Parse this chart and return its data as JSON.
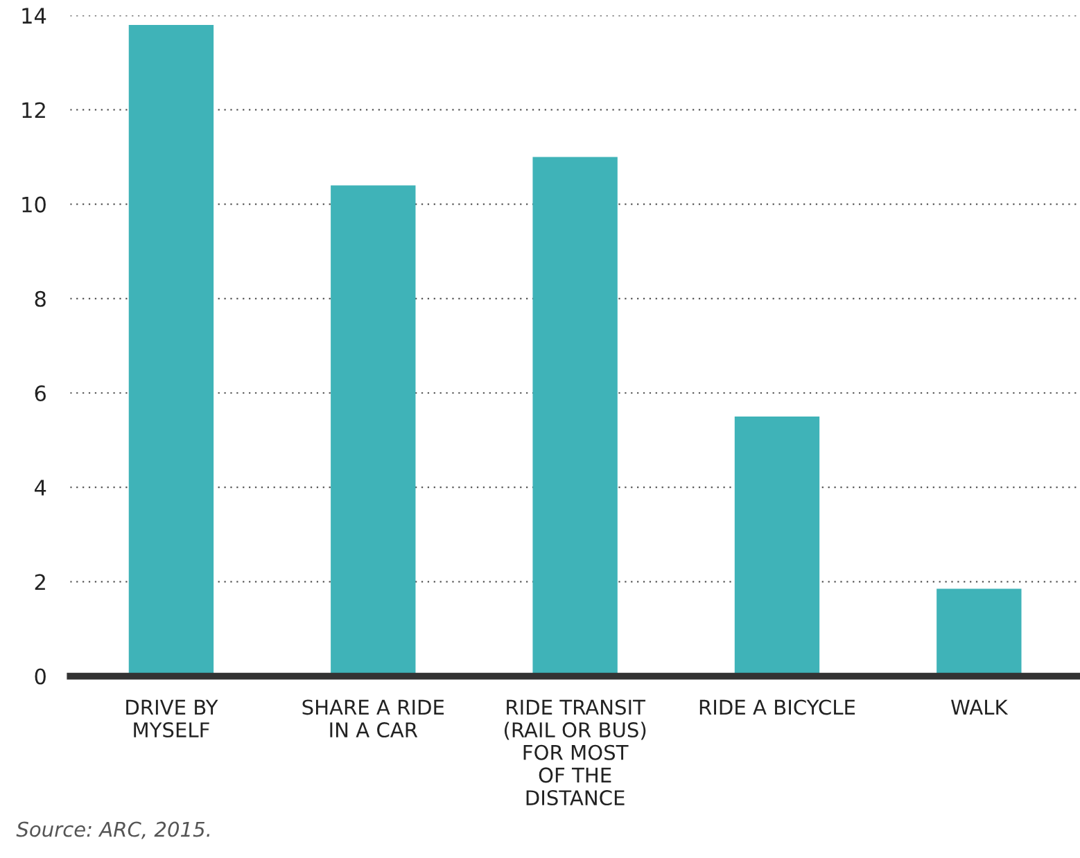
{
  "chart_data": {
    "type": "bar",
    "categories": [
      "DRIVE BY\nMYSELF",
      "SHARE A RIDE\nIN A CAR",
      "RIDE TRANSIT\n(RAIL OR BUS)\nFOR MOST\nOF THE\nDISTANCE",
      "RIDE A BICYCLE",
      "WALK"
    ],
    "values": [
      13.8,
      10.4,
      11.0,
      5.5,
      1.85
    ],
    "color": "#3fb3b8",
    "ylim": [
      0,
      14
    ],
    "yticks": [
      0,
      2,
      4,
      6,
      8,
      10,
      12,
      14
    ],
    "grid": "y",
    "annotations": [
      "Source: ARC, 2015."
    ]
  }
}
